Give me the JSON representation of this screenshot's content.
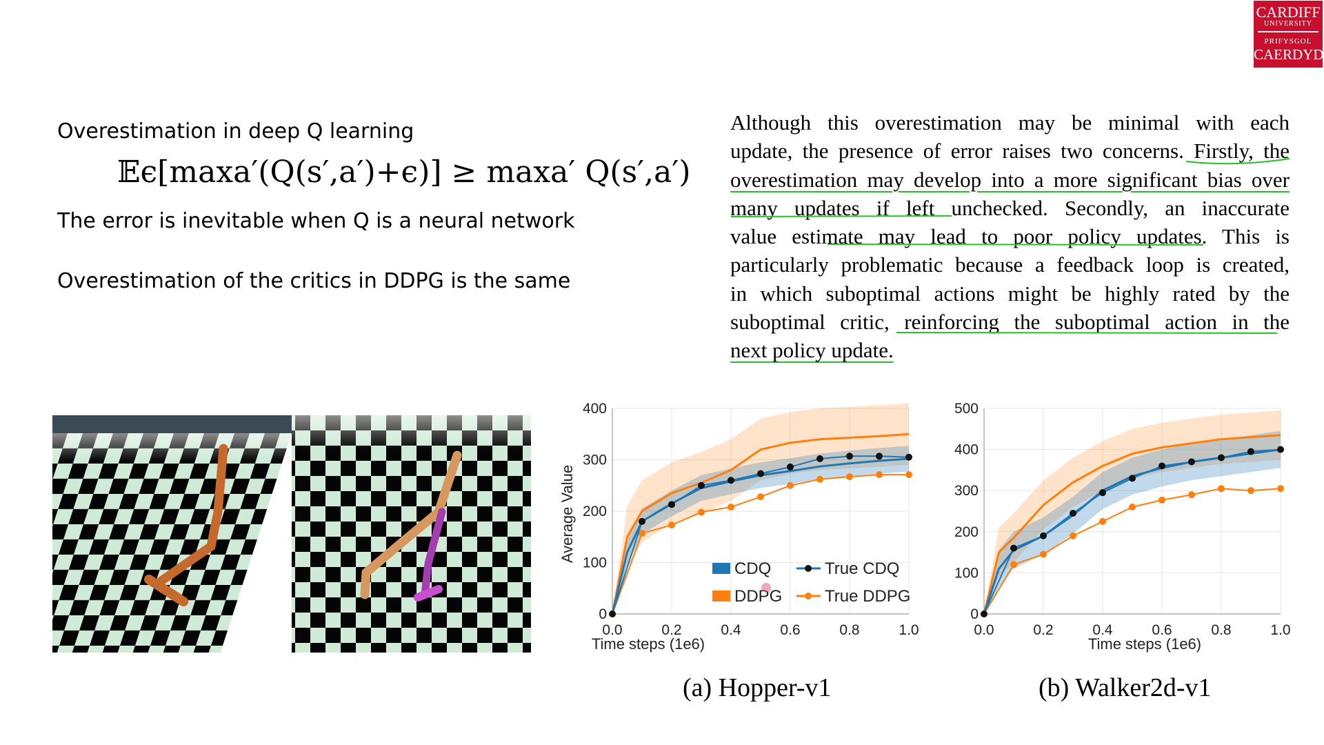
{
  "logo": {
    "line1": "CARDIFF",
    "line2": "UNIVERSITY",
    "line3": "PRIFYSGOL",
    "line4": "CAERDYDD"
  },
  "left": {
    "heading": "Overestimation in deep Q learning",
    "formula": "𝔼ϵ[maxa′(Q(s′,a′)+ϵ)] ≥ maxa′ Q(s′,a′)",
    "error_note": "The error is inevitable when Q is a neural network",
    "ddpg_note": "Overestimation of the critics in DDPG is the same"
  },
  "quote": {
    "lines": [
      "Although this overestimation may be minimal with each",
      "update, the presence of error raises two concerns. Firstly, the",
      "overestimation may develop into a more significant bias over",
      "many updates if left unchecked. Secondly, an inaccurate",
      "value estimate may lead to poor policy updates. This is",
      "particularly problematic because a feedback loop is created,",
      "in which suboptimal actions might be highly rated by the",
      "suboptimal critic, reinforcing the suboptimal action in the",
      "next policy update."
    ]
  },
  "colors": {
    "cdq": "#1f77b4",
    "ddpg": "#ff7f0e",
    "underline": "#22c322",
    "logo": "#c8102e"
  },
  "chart_data": [
    {
      "type": "line",
      "title": "(a) Hopper-v1",
      "xlabel": "Time steps (1e6)",
      "ylabel": "Average Value",
      "xlim": [
        0,
        1.0
      ],
      "ylim": [
        0,
        400
      ],
      "xticks": [
        "0.0",
        "0.2",
        "0.4",
        "0.6",
        "0.8",
        "1.0"
      ],
      "yticks": [
        "0",
        "100",
        "200",
        "300",
        "400"
      ],
      "legend": {
        "placement": "bottom-center",
        "entries": [
          "CDQ",
          "True CDQ",
          "DDPG",
          "True DDPG"
        ]
      },
      "series": [
        {
          "name": "CDQ",
          "x": [
            0,
            0.05,
            0.1,
            0.2,
            0.3,
            0.4,
            0.5,
            0.6,
            0.7,
            0.8,
            0.9,
            1.0
          ],
          "values": [
            0,
            120,
            180,
            215,
            245,
            258,
            270,
            278,
            287,
            293,
            298,
            302
          ],
          "band": 25
        },
        {
          "name": "DDPG",
          "x": [
            0,
            0.05,
            0.1,
            0.2,
            0.3,
            0.4,
            0.5,
            0.6,
            0.7,
            0.8,
            0.9,
            1.0
          ],
          "values": [
            0,
            150,
            200,
            235,
            255,
            280,
            320,
            333,
            340,
            343,
            346,
            350
          ],
          "band": 60
        },
        {
          "name": "True CDQ",
          "x": [
            0,
            0.1,
            0.2,
            0.3,
            0.4,
            0.5,
            0.6,
            0.7,
            0.8,
            0.9,
            1.0
          ],
          "values": [
            0,
            180,
            213,
            250,
            260,
            273,
            286,
            302,
            307,
            307,
            305
          ]
        },
        {
          "name": "True DDPG",
          "x": [
            0,
            0.1,
            0.2,
            0.3,
            0.4,
            0.5,
            0.6,
            0.7,
            0.8,
            0.9,
            1.0
          ],
          "values": [
            0,
            157,
            173,
            198,
            208,
            228,
            250,
            262,
            267,
            271,
            271
          ]
        }
      ]
    },
    {
      "type": "line",
      "title": "(b) Walker2d-v1",
      "xlabel": "Time steps (1e6)",
      "ylabel": "",
      "xlim": [
        0,
        1.0
      ],
      "ylim": [
        0,
        500
      ],
      "xticks": [
        "0.0",
        "0.2",
        "0.4",
        "0.6",
        "0.8",
        "1.0"
      ],
      "yticks": [
        "0",
        "100",
        "200",
        "300",
        "400",
        "500"
      ],
      "series": [
        {
          "name": "CDQ",
          "x": [
            0,
            0.05,
            0.1,
            0.2,
            0.3,
            0.4,
            0.5,
            0.6,
            0.7,
            0.8,
            0.9,
            1.0
          ],
          "values": [
            0,
            110,
            155,
            190,
            240,
            300,
            335,
            355,
            370,
            380,
            390,
            400
          ],
          "band": 45
        },
        {
          "name": "DDPG",
          "x": [
            0,
            0.05,
            0.1,
            0.2,
            0.3,
            0.4,
            0.5,
            0.6,
            0.7,
            0.8,
            0.9,
            1.0
          ],
          "values": [
            0,
            150,
            185,
            265,
            320,
            360,
            390,
            405,
            415,
            425,
            430,
            435
          ],
          "band": 60
        },
        {
          "name": "True CDQ",
          "x": [
            0,
            0.1,
            0.2,
            0.3,
            0.4,
            0.5,
            0.6,
            0.7,
            0.8,
            0.9,
            1.0
          ],
          "values": [
            0,
            160,
            190,
            245,
            295,
            330,
            360,
            370,
            380,
            395,
            400
          ]
        },
        {
          "name": "True DDPG",
          "x": [
            0,
            0.1,
            0.2,
            0.3,
            0.4,
            0.5,
            0.6,
            0.7,
            0.8,
            0.9,
            1.0
          ],
          "values": [
            0,
            120,
            145,
            190,
            225,
            260,
            277,
            290,
            305,
            300,
            305
          ]
        }
      ]
    }
  ]
}
